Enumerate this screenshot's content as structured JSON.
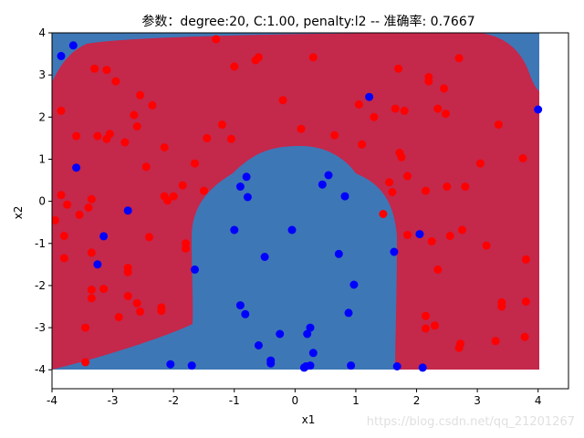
{
  "chart_data": {
    "type": "scatter",
    "title": "参数：degree:20, C:1.00, penalty:l2 -- 准确率: 0.7667",
    "xlabel": "x1",
    "ylabel": "x2",
    "xlim": [
      -4,
      4.5
    ],
    "ylim": [
      -4.45,
      4
    ],
    "x_ticks": [
      -4,
      -3,
      -2,
      -1,
      0,
      1,
      2,
      3,
      4
    ],
    "y_ticks": [
      -4,
      -3,
      -2,
      -1,
      0,
      1,
      2,
      3,
      4
    ],
    "grid": false,
    "background_regions": {
      "class_0_color": "#c4284b",
      "class_1_color": "#3e77b6"
    },
    "series": [
      {
        "color": "#ff0000",
        "points": [
          [
            -3.85,
            2.15
          ],
          [
            -3.6,
            1.55
          ],
          [
            -3.3,
            3.15
          ],
          [
            -3.1,
            3.12
          ],
          [
            -2.95,
            2.85
          ],
          [
            -2.65,
            2.05
          ],
          [
            -2.55,
            2.52
          ],
          [
            -2.35,
            2.28
          ],
          [
            -2.6,
            1.78
          ],
          [
            -3.25,
            1.55
          ],
          [
            -3.1,
            1.48
          ],
          [
            -3.05,
            1.6
          ],
          [
            -2.8,
            1.4
          ],
          [
            -2.45,
            0.82
          ],
          [
            -2.15,
            1.28
          ],
          [
            -1.85,
            0.38
          ],
          [
            -1.65,
            0.9
          ],
          [
            -1.5,
            0.25
          ],
          [
            -1.45,
            1.5
          ],
          [
            -1.2,
            1.82
          ],
          [
            -1.05,
            1.48
          ],
          [
            -1.0,
            3.2
          ],
          [
            -1.3,
            3.85
          ],
          [
            -0.65,
            3.35
          ],
          [
            -0.6,
            3.42
          ],
          [
            -0.2,
            2.4
          ],
          [
            0.3,
            3.42
          ],
          [
            0.1,
            1.72
          ],
          [
            0.65,
            1.57
          ],
          [
            1.05,
            2.3
          ],
          [
            1.1,
            1.35
          ],
          [
            1.3,
            2.0
          ],
          [
            1.45,
            -0.3
          ],
          [
            1.55,
            0.45
          ],
          [
            1.6,
            0.22
          ],
          [
            1.65,
            2.2
          ],
          [
            1.7,
            3.15
          ],
          [
            1.72,
            1.15
          ],
          [
            1.75,
            1.05
          ],
          [
            1.8,
            2.15
          ],
          [
            1.85,
            0.6
          ],
          [
            1.85,
            -0.8
          ],
          [
            2.15,
            0.25
          ],
          [
            2.2,
            2.85
          ],
          [
            2.2,
            2.95
          ],
          [
            2.35,
            2.2
          ],
          [
            2.45,
            2.68
          ],
          [
            2.48,
            2.08
          ],
          [
            2.5,
            0.35
          ],
          [
            2.55,
            -0.82
          ],
          [
            2.7,
            3.4
          ],
          [
            2.75,
            -0.68
          ],
          [
            2.8,
            0.35
          ],
          [
            3.05,
            0.9
          ],
          [
            3.15,
            -1.05
          ],
          [
            3.35,
            1.82
          ],
          [
            3.75,
            1.02
          ],
          [
            3.8,
            -1.38
          ],
          [
            3.4,
            -2.4
          ],
          [
            3.4,
            -2.5
          ],
          [
            3.8,
            -2.38
          ],
          [
            3.3,
            -3.32
          ],
          [
            3.78,
            -3.22
          ],
          [
            2.7,
            -3.48
          ],
          [
            2.72,
            -3.38
          ],
          [
            2.35,
            -1.62
          ],
          [
            2.3,
            -2.95
          ],
          [
            2.15,
            -2.72
          ],
          [
            2.15,
            -3.02
          ],
          [
            2.25,
            -0.95
          ],
          [
            -3.95,
            -0.45
          ],
          [
            -3.85,
            0.15
          ],
          [
            -3.75,
            -0.08
          ],
          [
            -3.8,
            -0.82
          ],
          [
            -3.8,
            -1.35
          ],
          [
            -3.55,
            -0.32
          ],
          [
            -3.35,
            0.05
          ],
          [
            -3.4,
            -0.15
          ],
          [
            -3.35,
            -1.22
          ],
          [
            -3.35,
            -2.1
          ],
          [
            -3.35,
            -2.3
          ],
          [
            -3.15,
            -2.08
          ],
          [
            -3.45,
            -3.0
          ],
          [
            -3.45,
            -3.82
          ],
          [
            -2.9,
            -2.75
          ],
          [
            -2.75,
            -1.58
          ],
          [
            -2.75,
            -1.68
          ],
          [
            -2.75,
            -2.25
          ],
          [
            -2.6,
            -2.42
          ],
          [
            -2.55,
            -2.62
          ],
          [
            -2.4,
            -0.85
          ],
          [
            -2.2,
            -2.52
          ],
          [
            -2.2,
            -2.6
          ],
          [
            -2.15,
            0.12
          ],
          [
            -2.1,
            0.02
          ],
          [
            -2.0,
            0.12
          ],
          [
            -1.8,
            -1.0
          ],
          [
            -1.8,
            -1.12
          ]
        ]
      },
      {
        "color": "#0000ff",
        "points": [
          [
            -3.65,
            3.7
          ],
          [
            -3.85,
            3.45
          ],
          [
            -3.6,
            0.8
          ],
          [
            -2.75,
            -0.22
          ],
          [
            -3.15,
            -0.83
          ],
          [
            -3.25,
            -1.5
          ],
          [
            -1.65,
            -1.62
          ],
          [
            -2.05,
            -3.87
          ],
          [
            -1.7,
            -3.9
          ],
          [
            -1.0,
            -0.68
          ],
          [
            -0.9,
            0.35
          ],
          [
            -0.8,
            0.58
          ],
          [
            -0.78,
            0.1
          ],
          [
            -0.9,
            -2.47
          ],
          [
            -0.82,
            -2.68
          ],
          [
            -0.5,
            -1.32
          ],
          [
            -0.6,
            -3.42
          ],
          [
            -0.4,
            -3.78
          ],
          [
            -0.4,
            -3.85
          ],
          [
            -0.25,
            -3.15
          ],
          [
            -0.05,
            -0.68
          ],
          [
            0.15,
            -3.95
          ],
          [
            0.18,
            -3.92
          ],
          [
            0.2,
            -3.15
          ],
          [
            0.25,
            -3.0
          ],
          [
            0.25,
            -3.9
          ],
          [
            0.3,
            -3.6
          ],
          [
            0.45,
            0.4
          ],
          [
            0.55,
            0.62
          ],
          [
            0.72,
            -1.25
          ],
          [
            0.82,
            0.12
          ],
          [
            0.88,
            -2.65
          ],
          [
            0.92,
            -3.9
          ],
          [
            0.97,
            -1.98
          ],
          [
            1.22,
            2.48
          ],
          [
            1.63,
            -1.2
          ],
          [
            1.68,
            -3.92
          ],
          [
            2.05,
            -0.78
          ],
          [
            2.1,
            -3.95
          ],
          [
            4.0,
            2.18
          ]
        ]
      }
    ]
  },
  "watermark": "https://blog.csdn.net/qq_21201267"
}
